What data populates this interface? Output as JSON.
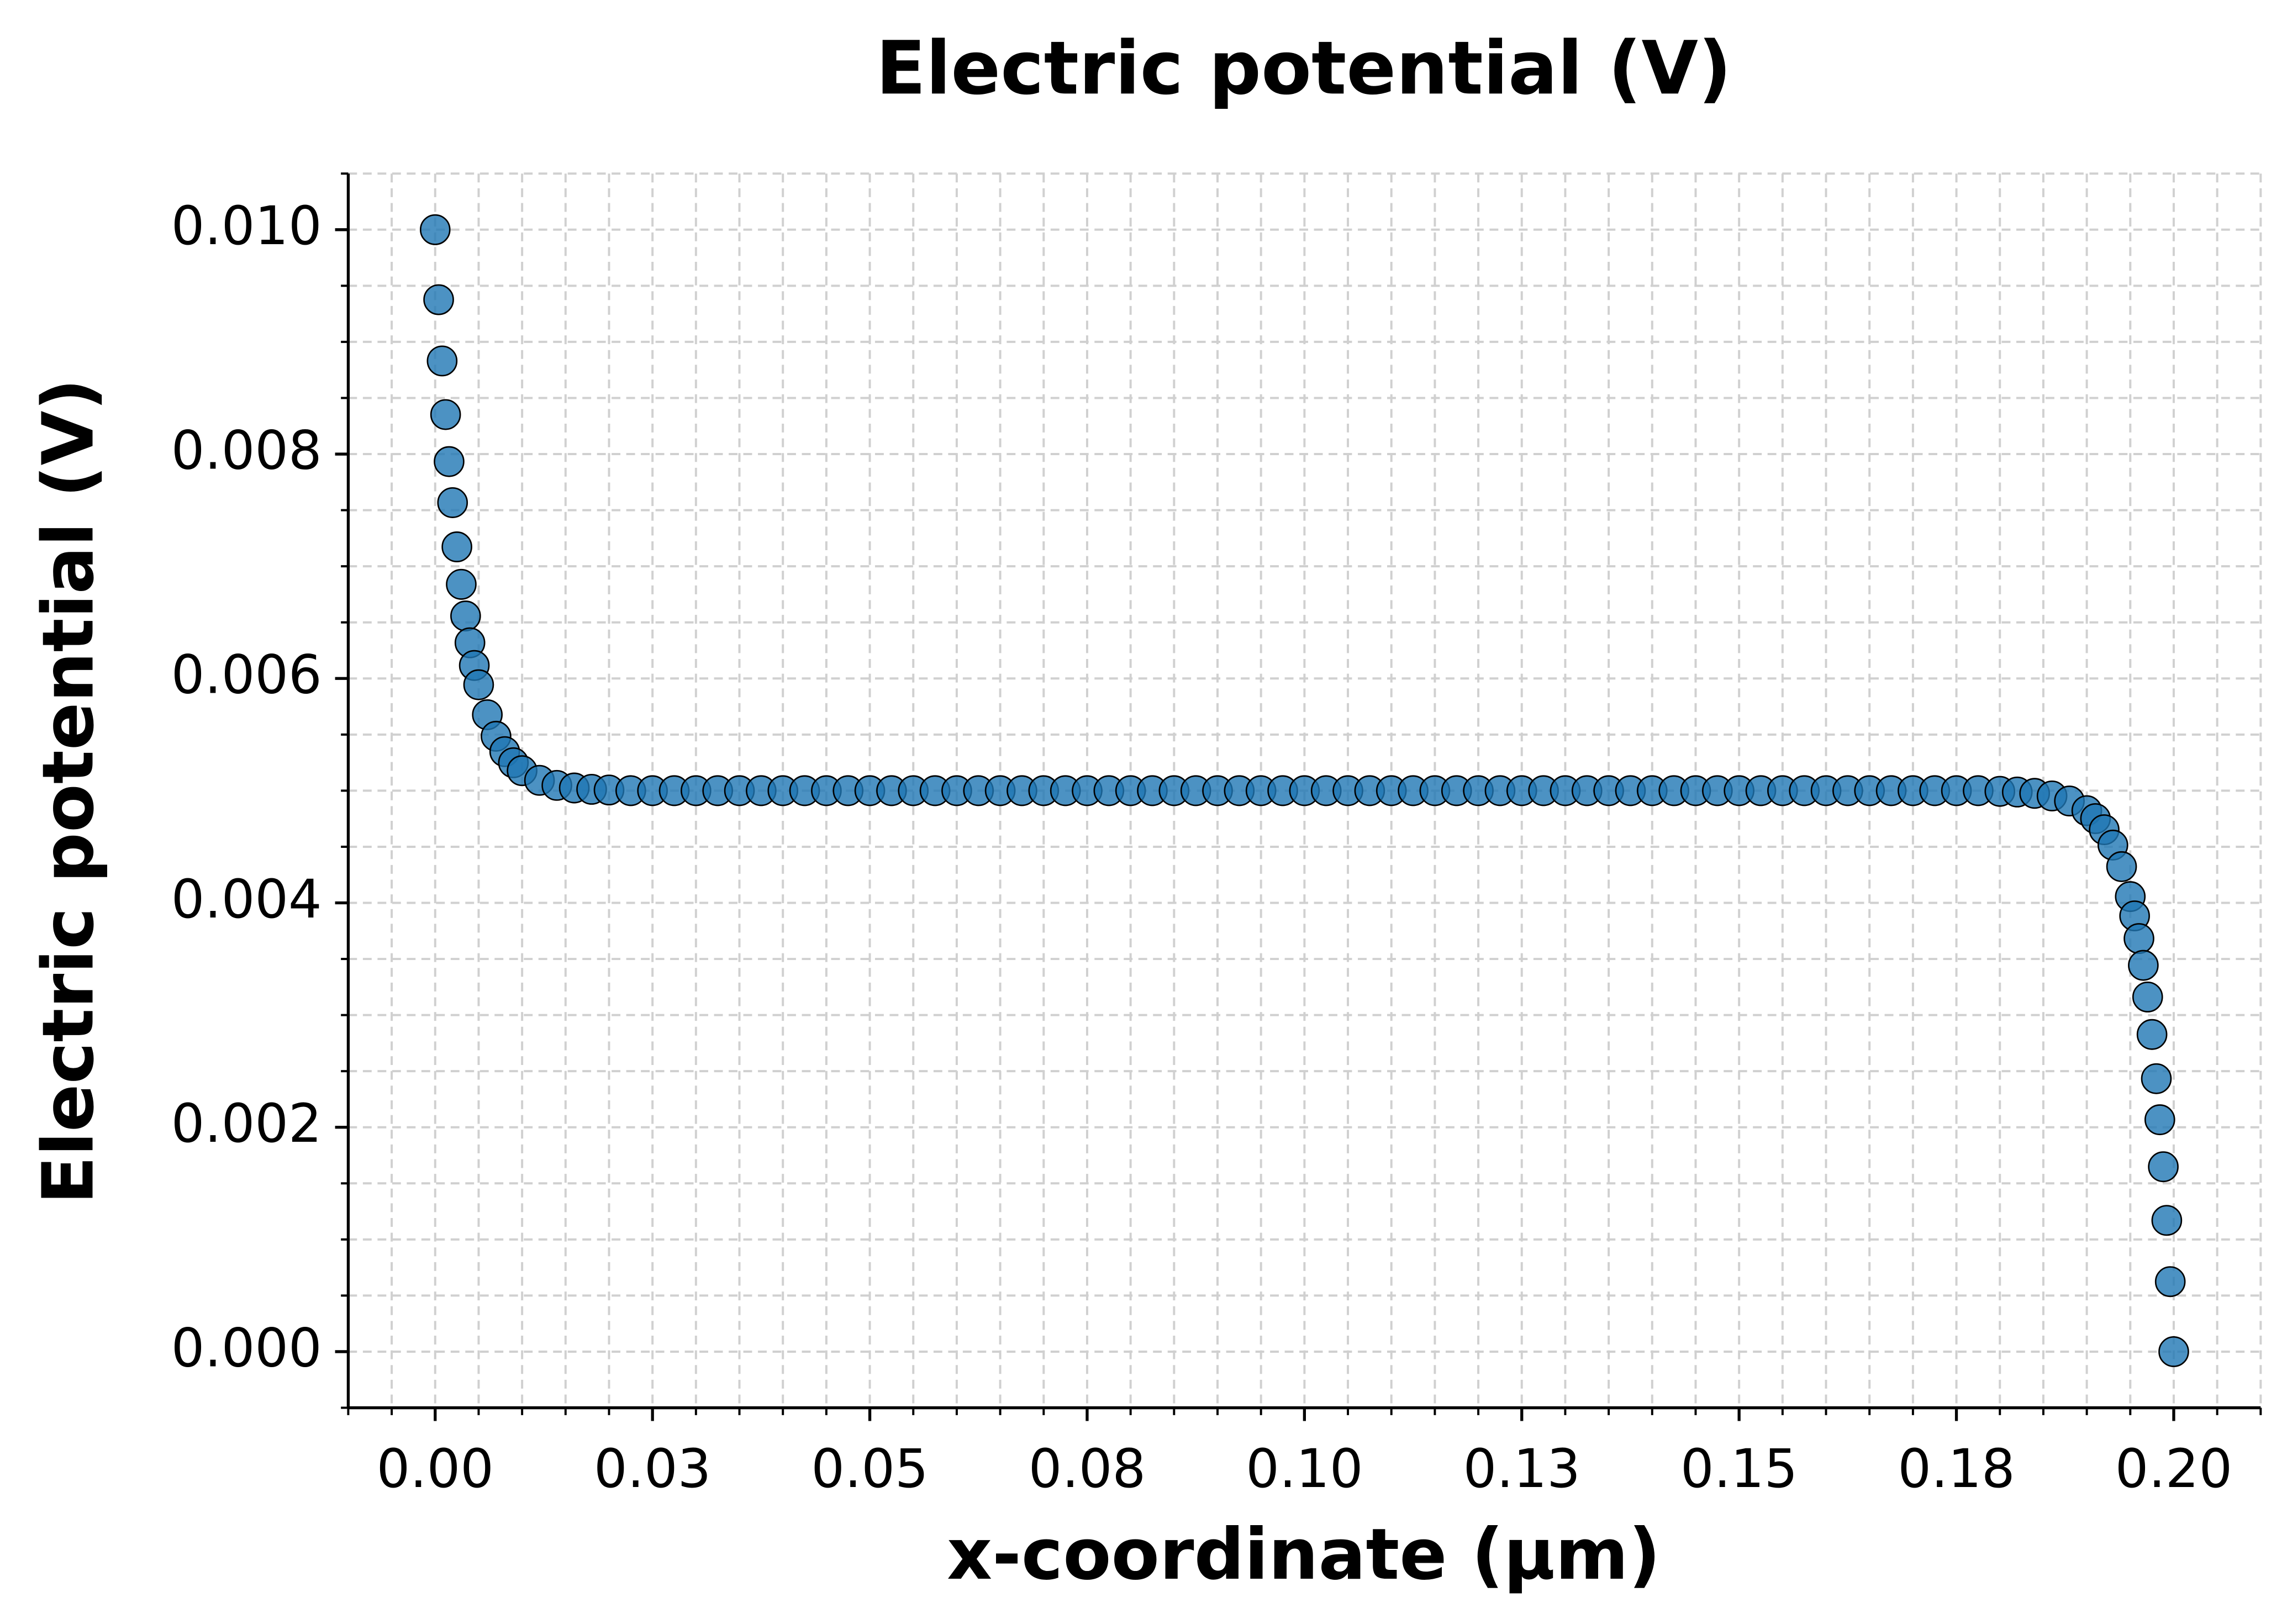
{
  "chart_data": {
    "type": "scatter",
    "title": "Electric potential (V)",
    "x_label": "x-coordinate (µm)",
    "y_label": "Electric potential (V)",
    "color": "#1f77b4",
    "grid": true,
    "xlim": [
      -0.01,
      0.21
    ],
    "ylim": [
      -0.0005,
      0.0105
    ],
    "xticks": [
      {
        "value": 0,
        "label": "0.00"
      },
      {
        "value": 0.025,
        "label": "0.03"
      },
      {
        "value": 0.05,
        "label": "0.05"
      },
      {
        "value": 0.075,
        "label": "0.08"
      },
      {
        "value": 0.1,
        "label": "0.10"
      },
      {
        "value": 0.125,
        "label": "0.13"
      },
      {
        "value": 0.15,
        "label": "0.15"
      },
      {
        "value": 0.175,
        "label": "0.18"
      },
      {
        "value": 0.2,
        "label": "0.20"
      }
    ],
    "yticks": [
      {
        "value": 0,
        "label": "0.000"
      },
      {
        "value": 0.002,
        "label": "0.002"
      },
      {
        "value": 0.004,
        "label": "0.004"
      },
      {
        "value": 0.006,
        "label": "0.006"
      },
      {
        "value": 0.008,
        "label": "0.008"
      },
      {
        "value": 0.01,
        "label": "0.010"
      }
    ],
    "xminorticks": [
      -0.01,
      -0.005,
      0.005,
      0.01,
      0.015,
      0.02,
      0.03,
      0.035,
      0.04,
      0.045,
      0.055,
      0.06,
      0.065,
      0.07,
      0.08,
      0.085,
      0.09,
      0.095,
      0.105,
      0.11,
      0.115,
      0.12,
      0.13,
      0.135,
      0.14,
      0.145,
      0.155,
      0.16,
      0.165,
      0.17,
      0.18,
      0.185,
      0.19,
      0.195,
      0.205,
      0.21
    ],
    "yminorticks": [
      -0.0005,
      0.0005,
      0.001,
      0.0015,
      0.0025,
      0.003,
      0.0035,
      0.0045,
      0.005,
      0.0055,
      0.0065,
      0.007,
      0.0075,
      0.0085,
      0.009,
      0.0095,
      0.0105
    ],
    "x": [
      0,
      0.0004,
      0.0008,
      0.0012,
      0.0016,
      0.002,
      0.0025,
      0.003,
      0.0035,
      0.004,
      0.0045,
      0.005,
      0.006,
      0.007,
      0.008,
      0.009,
      0.01,
      0.012,
      0.014,
      0.016,
      0.018,
      0.02,
      0.0225,
      0.025,
      0.0275,
      0.03,
      0.0325,
      0.035,
      0.0375,
      0.04,
      0.0425,
      0.045,
      0.0475,
      0.05,
      0.0525,
      0.055,
      0.0575,
      0.06,
      0.0625,
      0.065,
      0.0675,
      0.07,
      0.0725,
      0.075,
      0.0775,
      0.08,
      0.0825,
      0.085,
      0.0875,
      0.09,
      0.0925,
      0.095,
      0.0975,
      0.1,
      0.1025,
      0.105,
      0.1075,
      0.11,
      0.1125,
      0.115,
      0.1175,
      0.12,
      0.1225,
      0.125,
      0.1275,
      0.13,
      0.1325,
      0.135,
      0.1375,
      0.14,
      0.1425,
      0.145,
      0.1475,
      0.15,
      0.1525,
      0.155,
      0.1575,
      0.16,
      0.1625,
      0.165,
      0.1675,
      0.17,
      0.1725,
      0.175,
      0.1775,
      0.18,
      0.182,
      0.184,
      0.186,
      0.188,
      0.19,
      0.191,
      0.192,
      0.193,
      0.194,
      0.195,
      0.1955,
      0.196,
      0.1965,
      0.197,
      0.1975,
      0.198,
      0.1984,
      0.1988,
      0.1992,
      0.1996,
      0.2
    ],
    "values": [
      0.01,
      0.009376,
      0.00883,
      0.008352,
      0.007933,
      0.007567,
      0.007173,
      0.006839,
      0.006557,
      0.006318,
      0.006116,
      0.005944,
      0.005677,
      0.005485,
      0.005348,
      0.005249,
      0.005178,
      0.005092,
      0.005047,
      0.005024,
      0.005012,
      0.005006,
      0.005,
      0.005,
      0.005,
      0.005,
      0.005,
      0.005,
      0.005,
      0.005,
      0.005,
      0.005,
      0.005,
      0.005,
      0.005,
      0.005,
      0.005,
      0.005,
      0.005,
      0.005,
      0.005,
      0.005,
      0.005,
      0.005,
      0.005,
      0.005,
      0.005,
      0.005,
      0.005,
      0.005,
      0.005,
      0.005,
      0.005,
      0.005,
      0.005,
      0.005,
      0.005,
      0.005,
      0.005,
      0.005,
      0.005,
      0.005,
      0.005,
      0.005,
      0.005,
      0.005,
      0.005,
      0.005,
      0.005,
      0.005,
      0.005,
      0.005,
      0.005,
      0.005,
      0.005,
      0.005,
      0.005,
      0.005,
      0.005,
      0.005,
      0.005,
      0.005,
      0.005,
      0.005,
      0.005,
      0.004994,
      0.004988,
      0.004976,
      0.004953,
      0.004908,
      0.004822,
      0.004751,
      0.004652,
      0.004515,
      0.004323,
      0.004056,
      0.003884,
      0.003682,
      0.003443,
      0.003161,
      0.002827,
      0.002433,
      0.002067,
      0.001648,
      0.00117,
      0.000624,
      0
    ]
  }
}
